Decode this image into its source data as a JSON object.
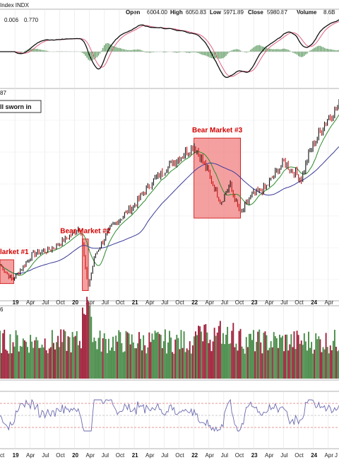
{
  "header": {
    "symbol": "Index INDX",
    "ohlc": [
      {
        "label": "Open",
        "value": "6004.00"
      },
      {
        "label": "High",
        "value": "6050.83"
      },
      {
        "label": "Low",
        "value": "5971.89"
      },
      {
        "label": "Close",
        "value": "5980.87"
      },
      {
        "label": "Volume",
        "value": "8.6B"
      }
    ]
  },
  "macd_panel": {
    "legend_values": [
      "0.006",
      "0.770"
    ],
    "colors": {
      "macd": "#111111",
      "signal": "#e06080",
      "hist": "#2e7d32",
      "legend_a": "#c2185b",
      "legend_b": "#2e7d32"
    }
  },
  "price_panel": {
    "label_value": "87",
    "note": "ll sworn in",
    "ma_fast_color": "#2e8b2e",
    "ma_slow_color": "#3a3a9a",
    "bar_up_color": "#111111",
    "bar_down_color": "#cc1111"
  },
  "volume_panel": {
    "label_value": "6"
  },
  "time_axis": {
    "ticks": [
      {
        "label": "19",
        "bold": true
      },
      {
        "label": "Apr"
      },
      {
        "label": "Jul"
      },
      {
        "label": "Oct"
      },
      {
        "label": "20",
        "bold": true
      },
      {
        "label": "Apr"
      },
      {
        "label": "Jul"
      },
      {
        "label": "Oct"
      },
      {
        "label": "21",
        "bold": true
      },
      {
        "label": "Apr"
      },
      {
        "label": "Jul"
      },
      {
        "label": "Oct"
      },
      {
        "label": "22",
        "bold": true
      },
      {
        "label": "Apr"
      },
      {
        "label": "Jul"
      },
      {
        "label": "Oct"
      },
      {
        "label": "23",
        "bold": true
      },
      {
        "label": "Apr"
      },
      {
        "label": "Jul"
      },
      {
        "label": "Oct"
      },
      {
        "label": "24",
        "bold": true
      },
      {
        "label": "Apr"
      }
    ],
    "bottom_left_label": "ct",
    "bottom_right_label": "J"
  },
  "chart_data": {
    "type": "line",
    "title": "",
    "xlabel": "",
    "ylabel": "",
    "x_range": [
      "2018-10",
      "2024-06"
    ],
    "series": [
      {
        "values": [
          [
            2018.75,
            2720
          ],
          [
            2018.95,
            2450
          ],
          [
            2019.0,
            2500
          ],
          [
            2019.3,
            2900
          ],
          [
            2019.6,
            2980
          ],
          [
            2019.9,
            3200
          ],
          [
            2020.1,
            3380
          ],
          [
            2020.22,
            2300
          ],
          [
            2020.35,
            2900
          ],
          [
            2020.6,
            3350
          ],
          [
            2020.85,
            3600
          ],
          [
            2021.0,
            3750
          ],
          [
            2021.3,
            4150
          ],
          [
            2021.6,
            4450
          ],
          [
            2021.9,
            4700
          ],
          [
            2022.0,
            4790
          ],
          [
            2022.2,
            4400
          ],
          [
            2022.45,
            3800
          ],
          [
            2022.6,
            4100
          ],
          [
            2022.78,
            3580
          ],
          [
            2022.95,
            3900
          ],
          [
            2023.2,
            4050
          ],
          [
            2023.5,
            4500
          ],
          [
            2023.8,
            4200
          ],
          [
            2023.95,
            4700
          ],
          [
            2024.2,
            5200
          ],
          [
            2024.4,
            5450
          ]
        ]
      }
    ],
    "grid": true,
    "annotations": [
      {
        "label": "larket #1",
        "x_start": 2018.75,
        "x_end": 2018.98
      },
      {
        "label": "Bear Market #2",
        "x_start": 2020.13,
        "x_end": 2020.23
      },
      {
        "label": "Bear Market #3",
        "x_start": 2022.0,
        "x_end": 2022.78
      }
    ],
    "shading_color": "#f08080"
  }
}
